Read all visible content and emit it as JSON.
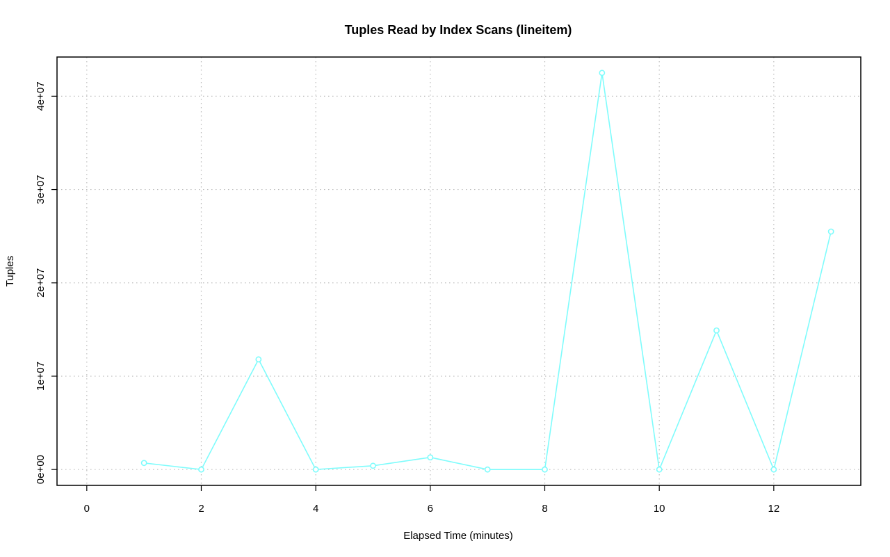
{
  "chart_data": {
    "type": "line",
    "title": "Tuples Read by Index Scans (lineitem)",
    "xlabel": "Elapsed Time (minutes)",
    "ylabel": "Tuples",
    "xlim": [
      -0.52,
      13.52
    ],
    "ylim": [
      -1700000,
      44200000
    ],
    "x_ticks": [
      0,
      2,
      4,
      6,
      8,
      10,
      12
    ],
    "x_tick_labels": [
      "0",
      "2",
      "4",
      "6",
      "8",
      "10",
      "12"
    ],
    "y_ticks": [
      0,
      10000000,
      20000000,
      30000000,
      40000000
    ],
    "y_tick_labels": [
      "0e+00",
      "1e+07",
      "2e+07",
      "3e+07",
      "4e+07"
    ],
    "grid": true,
    "series": [
      {
        "color": "#7ffcfc",
        "x": [
          1,
          2,
          3,
          4,
          5,
          6,
          7,
          8,
          9,
          10,
          11,
          12,
          13
        ],
        "y": [
          700000,
          0,
          11800000,
          0,
          400000,
          1300000,
          0,
          0,
          42500000,
          0,
          14900000,
          0,
          25500000
        ]
      }
    ]
  }
}
